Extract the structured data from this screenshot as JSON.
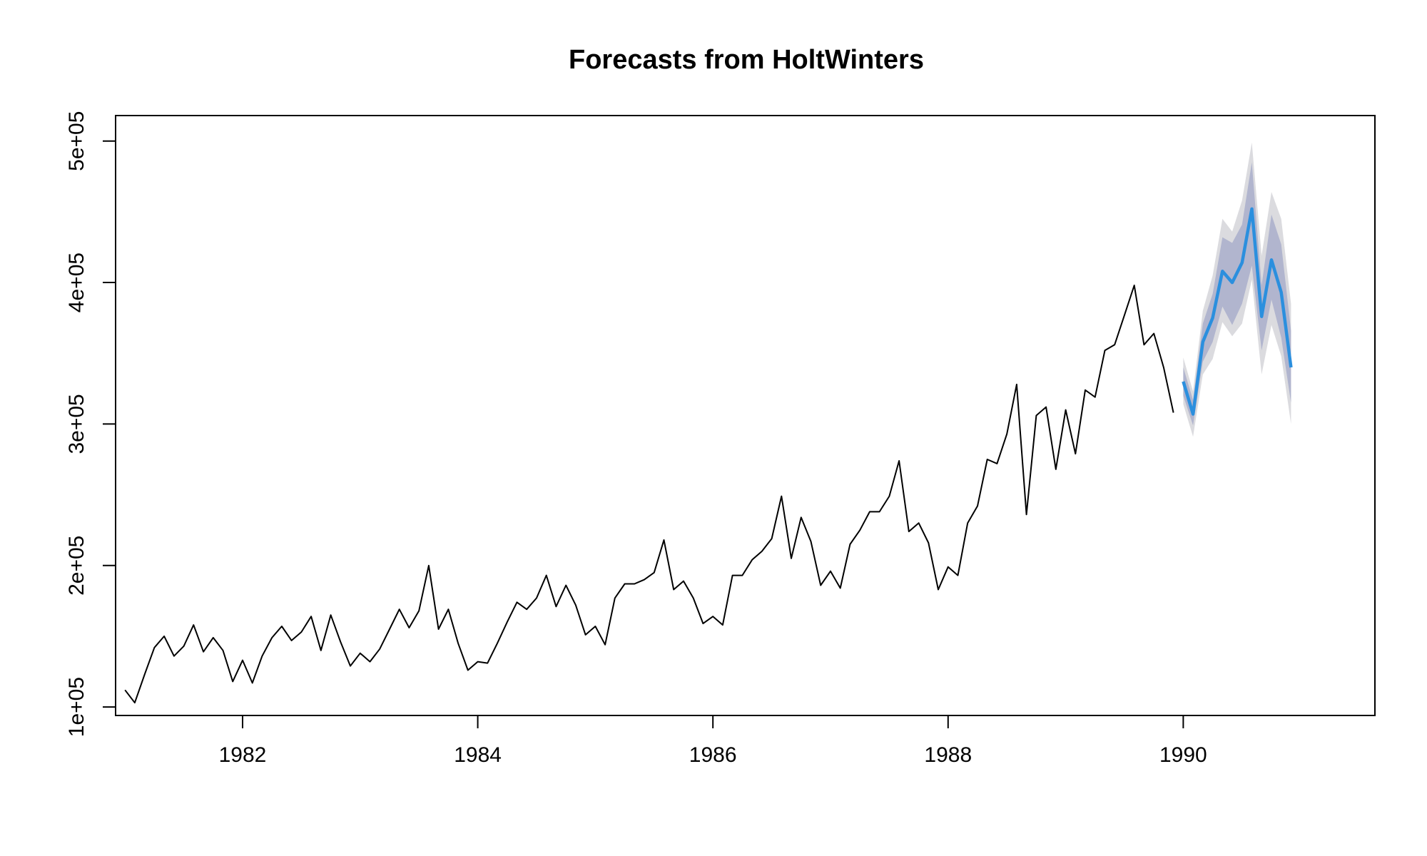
{
  "chart_data": {
    "type": "line",
    "title": "Forecasts from HoltWinters",
    "xlabel": "",
    "ylabel": "",
    "xlim": [
      1980.92,
      1991.63
    ],
    "ylim": [
      94000,
      518000
    ],
    "x_ticks": [
      {
        "value": 1982,
        "label": "1982"
      },
      {
        "value": 1984,
        "label": "1984"
      },
      {
        "value": 1986,
        "label": "1986"
      },
      {
        "value": 1988,
        "label": "1988"
      },
      {
        "value": 1990,
        "label": "1990"
      }
    ],
    "y_ticks": [
      {
        "value": 100000,
        "label": "1e+05"
      },
      {
        "value": 200000,
        "label": "2e+05"
      },
      {
        "value": 300000,
        "label": "3e+05"
      },
      {
        "value": 400000,
        "label": "4e+05"
      },
      {
        "value": 500000,
        "label": "5e+05"
      }
    ],
    "grid": false,
    "colors": {
      "history": "#000000",
      "forecast": "#2b8fde",
      "band80": "#b1b5ce",
      "band95": "#dbdbdf"
    },
    "series": [
      {
        "role": "history",
        "start": 1981.0,
        "frequency": 12,
        "values": [
          112000,
          103000,
          123000,
          142000,
          150000,
          136000,
          143000,
          158000,
          139000,
          149000,
          140000,
          118000,
          133000,
          117000,
          136000,
          149000,
          157000,
          147000,
          153000,
          164000,
          140000,
          165000,
          146000,
          129000,
          138000,
          132000,
          141000,
          155000,
          169000,
          156000,
          168000,
          200000,
          155000,
          169000,
          145000,
          126000,
          132000,
          131000,
          145000,
          160000,
          174000,
          169000,
          177000,
          193000,
          171000,
          186000,
          172000,
          151000,
          157000,
          144000,
          177000,
          187000,
          187000,
          190000,
          195000,
          218000,
          183000,
          189000,
          177000,
          159000,
          164000,
          158000,
          193000,
          193000,
          204000,
          210000,
          219000,
          249000,
          205000,
          234000,
          217000,
          186000,
          196000,
          184000,
          215000,
          225000,
          238000,
          238000,
          249000,
          274000,
          224000,
          230000,
          216000,
          183000,
          199000,
          193000,
          230000,
          242000,
          275000,
          272000,
          293000,
          328000,
          236000,
          306000,
          312000,
          268000,
          310000,
          279000,
          324000,
          319000,
          352000,
          356000,
          377000,
          398000,
          356000,
          364000,
          340000,
          308000
        ]
      },
      {
        "role": "forecast",
        "start": 1990.0,
        "frequency": 12,
        "values": [
          330000,
          307000,
          358000,
          375000,
          408000,
          400000,
          414000,
          452000,
          376000,
          416000,
          393000,
          340000
        ],
        "lo80": [
          320000,
          299000,
          344000,
          358000,
          383000,
          370000,
          385000,
          412000,
          352000,
          388000,
          361000,
          315000
        ],
        "hi80": [
          340000,
          317000,
          371000,
          392000,
          432000,
          428000,
          441000,
          485000,
          398000,
          448000,
          427000,
          366000
        ],
        "lo95": [
          314000,
          291000,
          335000,
          346000,
          372000,
          362000,
          371000,
          402000,
          335000,
          370000,
          348000,
          300000
        ],
        "hi95": [
          347000,
          323000,
          380000,
          405000,
          445000,
          436000,
          458000,
          499000,
          419000,
          464000,
          445000,
          385000
        ]
      }
    ]
  }
}
